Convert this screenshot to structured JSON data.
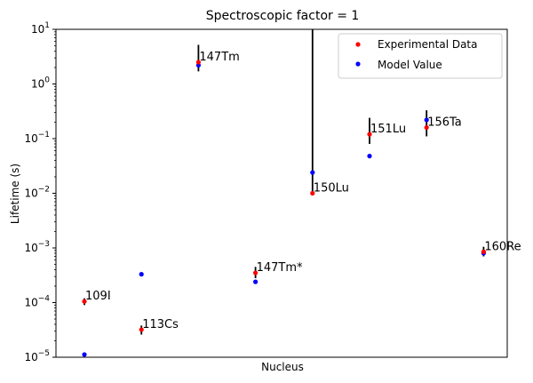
{
  "chart_data": {
    "type": "scatter",
    "title": "Spectroscopic factor = 1",
    "xlabel": "Nucleus",
    "ylabel": "Lifetime (s)",
    "yscale": "log",
    "ylim": [
      1e-05,
      10
    ],
    "y_ticks": [
      {
        "value": 1e-05,
        "base": "10",
        "exp": "−5"
      },
      {
        "value": 0.0001,
        "base": "10",
        "exp": "−4"
      },
      {
        "value": 0.001,
        "base": "10",
        "exp": "−3"
      },
      {
        "value": 0.01,
        "base": "10",
        "exp": "−2"
      },
      {
        "value": 0.1,
        "base": "10",
        "exp": "−1"
      },
      {
        "value": 1,
        "base": "10",
        "exp": "0"
      },
      {
        "value": 10,
        "base": "10",
        "exp": "1"
      }
    ],
    "grid": false,
    "legend_position": "top-right",
    "legend": [
      {
        "label": "Experimental Data",
        "color": "#ff0000"
      },
      {
        "label": "Model Value",
        "color": "#0000ff"
      }
    ],
    "experimental": [
      {
        "idx": 0,
        "label": "109I",
        "y": 0.000105,
        "err_low": 9e-05,
        "err_high": 0.00012
      },
      {
        "idx": 1,
        "label": "113Cs",
        "y": 3.2e-05,
        "err_low": 2.6e-05,
        "err_high": 3.8e-05
      },
      {
        "idx": 2,
        "label": "147Tm",
        "y": 2.5,
        "err_low": 1.7,
        "err_high": 5.2
      },
      {
        "idx": 3,
        "label": "147Tm*",
        "y": 0.00035,
        "err_low": 0.00028,
        "err_high": 0.00045
      },
      {
        "idx": 4,
        "label": "150Lu",
        "y": 0.01,
        "err_low": 0.01,
        "err_high": 10
      },
      {
        "idx": 5,
        "label": "151Lu",
        "y": 0.12,
        "err_low": 0.08,
        "err_high": 0.24
      },
      {
        "idx": 6,
        "label": "156Ta",
        "y": 0.16,
        "err_low": 0.11,
        "err_high": 0.33
      },
      {
        "idx": 7,
        "label": "160Re",
        "y": 0.00085,
        "err_low": 0.0007,
        "err_high": 0.00105
      }
    ],
    "model": [
      {
        "idx": 0,
        "y": 1.12e-05
      },
      {
        "idx": 1,
        "y": 0.00033
      },
      {
        "idx": 2,
        "y": 2.2
      },
      {
        "idx": 3,
        "y": 0.00024
      },
      {
        "idx": 4,
        "y": 0.024
      },
      {
        "idx": 5,
        "y": 0.048
      },
      {
        "idx": 6,
        "y": 0.22
      },
      {
        "idx": 7,
        "y": 0.0008
      }
    ],
    "colors": {
      "experimental": "#ff0000",
      "model": "#0000ff",
      "errorbar": "#000000"
    }
  }
}
